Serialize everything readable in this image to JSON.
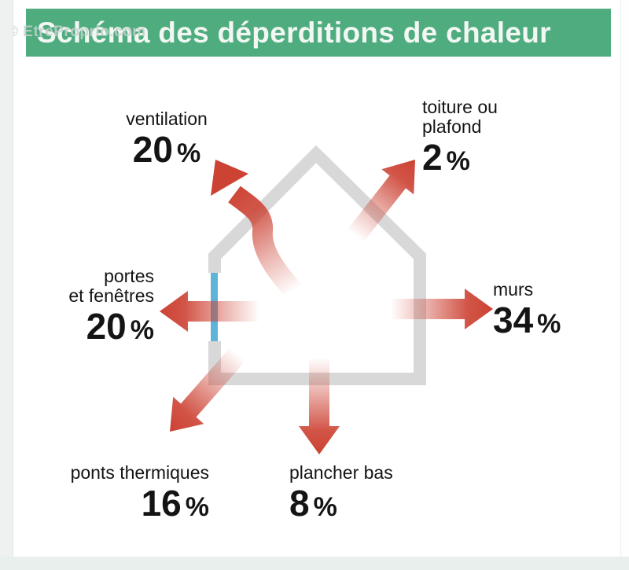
{
  "watermark": "© EtreProprio.com",
  "banner": {
    "title": "Schéma des déperditions de chaleur"
  },
  "losses": [
    {
      "id": "ventilation",
      "label": "ventilation",
      "value": "20",
      "unit": "%"
    },
    {
      "id": "toiture",
      "label": "toiture ou\nplafond",
      "value": "2",
      "unit": "%"
    },
    {
      "id": "portes",
      "label": "portes\net fenêtres",
      "value": "20",
      "unit": "%"
    },
    {
      "id": "murs",
      "label": "murs",
      "value": "34",
      "unit": "%"
    },
    {
      "id": "ponts",
      "label": "ponts thermiques",
      "value": "16",
      "unit": "%"
    },
    {
      "id": "plancher",
      "label": "plancher bas",
      "value": "8",
      "unit": "%"
    }
  ],
  "colors": {
    "banner_green": "#4eac7e",
    "title_text": "#f2f7f3",
    "arrow_red": "#cc4233",
    "house_gray": "#d8d8d8",
    "window_blue": "#5eb3d8",
    "label_text": "#141414",
    "footer_strip": "#e8efec"
  }
}
